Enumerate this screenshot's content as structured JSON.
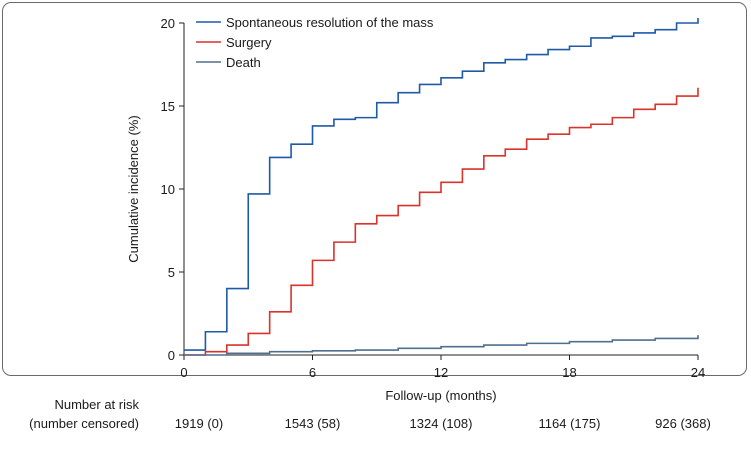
{
  "chart_data": {
    "type": "line",
    "step": true,
    "xlabel": "Follow-up (months)",
    "ylabel": "Cumulative incidence (%)",
    "xlim": [
      0,
      24
    ],
    "ylim": [
      0,
      20
    ],
    "xticks": [
      0,
      6,
      12,
      18,
      24
    ],
    "yticks": [
      0,
      5,
      10,
      15,
      20
    ],
    "grid": false,
    "legend_position": "top-left",
    "series": [
      {
        "name": "Spontaneous resolution of the mass",
        "color": "#1f5aa6",
        "x": [
          0,
          1,
          2,
          3,
          4,
          5,
          6,
          7,
          8,
          9,
          10,
          11,
          12,
          13,
          14,
          15,
          16,
          17,
          18,
          19,
          20,
          21,
          22,
          23,
          24
        ],
        "y": [
          0.3,
          1.4,
          4.0,
          9.7,
          11.9,
          12.7,
          13.8,
          14.2,
          14.3,
          15.2,
          15.8,
          16.3,
          16.7,
          17.1,
          17.6,
          17.8,
          18.1,
          18.4,
          18.6,
          19.1,
          19.2,
          19.4,
          19.6,
          20.0,
          20.3
        ]
      },
      {
        "name": "Surgery",
        "color": "#d9332b",
        "x": [
          0,
          1,
          2,
          3,
          4,
          5,
          6,
          7,
          8,
          9,
          10,
          11,
          12,
          13,
          14,
          15,
          16,
          17,
          18,
          19,
          20,
          21,
          22,
          23,
          24
        ],
        "y": [
          0.0,
          0.2,
          0.6,
          1.3,
          2.6,
          4.2,
          5.7,
          6.8,
          7.9,
          8.4,
          9.0,
          9.8,
          10.4,
          11.2,
          12.0,
          12.4,
          13.0,
          13.3,
          13.7,
          13.9,
          14.3,
          14.8,
          15.1,
          15.6,
          16.1
        ]
      },
      {
        "name": "Death",
        "color": "#4f6f8f",
        "x": [
          0,
          2,
          4,
          6,
          8,
          10,
          12,
          14,
          16,
          18,
          20,
          22,
          24
        ],
        "y": [
          0.0,
          0.1,
          0.2,
          0.25,
          0.3,
          0.4,
          0.5,
          0.6,
          0.7,
          0.8,
          0.9,
          1.0,
          1.2
        ]
      }
    ]
  },
  "risk_table": {
    "label_line1": "Number at risk",
    "label_line2": "(number censored)",
    "values": [
      {
        "month": 0,
        "text": "1919 (0)"
      },
      {
        "month": 6,
        "text": "1543 (58)"
      },
      {
        "month": 12,
        "text": "1324 (108)"
      },
      {
        "month": 18,
        "text": "1164 (175)"
      },
      {
        "month": 24,
        "text": "926 (368)"
      }
    ]
  }
}
